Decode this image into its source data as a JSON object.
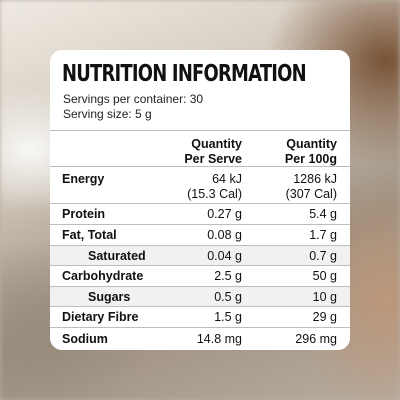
{
  "panel": {
    "title": "NUTRITION INFORMATION",
    "servings_per_container": "Servings per container: 30",
    "serving_size": "Serving size: 5 g"
  },
  "columns": {
    "per_serve": [
      "Quantity",
      "Per Serve"
    ],
    "per_100g": [
      "Quantity",
      "Per 100g"
    ]
  },
  "rows": [
    {
      "label": "Energy",
      "per_serve": "64 kJ",
      "per_serve_sub": "(15.3 Cal)",
      "per_100g": "1286 kJ",
      "per_100g_sub": "(307 Cal)"
    },
    {
      "label": "Protein",
      "per_serve": "0.27 g",
      "per_100g": "5.4 g"
    },
    {
      "label": "Fat, Total",
      "per_serve": "0.08 g",
      "per_100g": "1.7 g"
    },
    {
      "label": "Saturated",
      "per_serve": "0.04 g",
      "per_100g": "0.7 g"
    },
    {
      "label": "Carbohydrate",
      "per_serve": "2.5 g",
      "per_100g": "50 g"
    },
    {
      "label": "Sugars",
      "per_serve": "0.5 g",
      "per_100g": "10 g"
    },
    {
      "label": "Dietary Fibre",
      "per_serve": "1.5 g",
      "per_100g": "29 g"
    },
    {
      "label": "Sodium",
      "per_serve": "14.8 mg",
      "per_100g": "296 mg"
    }
  ]
}
